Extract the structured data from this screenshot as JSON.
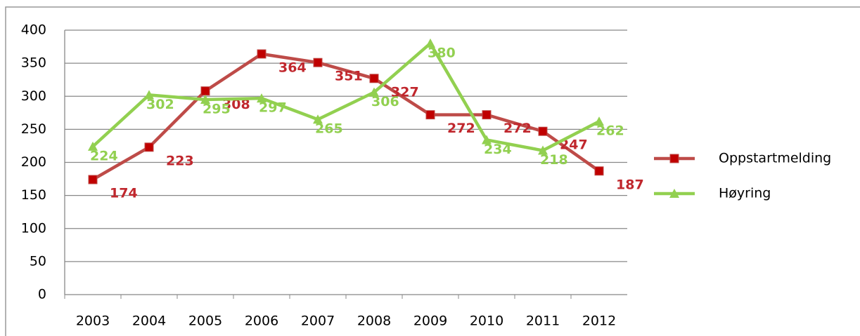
{
  "chart_data": {
    "type": "line",
    "categories": [
      "2003",
      "2004",
      "2005",
      "2006",
      "2007",
      "2008",
      "2009",
      "2010",
      "2011",
      "2012"
    ],
    "series": [
      {
        "name": "Oppstartmelding",
        "color": "#be4b48",
        "marker": "square",
        "values": [
          174,
          223,
          308,
          364,
          351,
          327,
          272,
          272,
          247,
          187
        ]
      },
      {
        "name": "Høyring",
        "color": "#92d050",
        "marker": "triangle",
        "values": [
          224,
          302,
          295,
          297,
          265,
          306,
          380,
          234,
          218,
          262
        ]
      }
    ],
    "ylim": [
      0,
      400
    ],
    "yticks": [
      0,
      50,
      100,
      150,
      200,
      250,
      300,
      350,
      400
    ],
    "grid": true,
    "legend": "right"
  }
}
